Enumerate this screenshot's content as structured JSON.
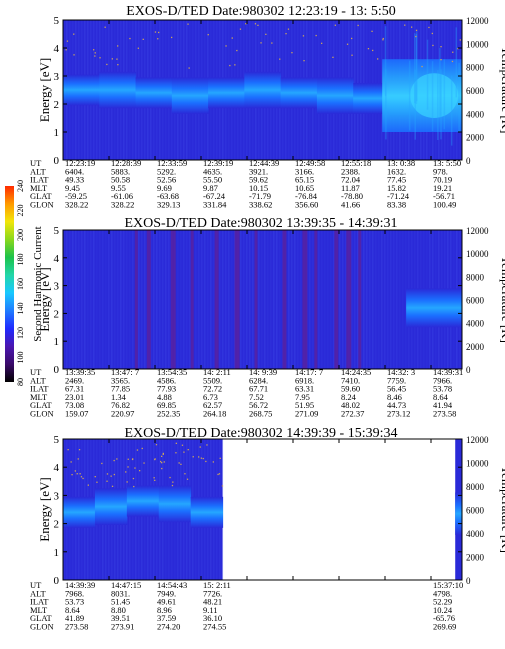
{
  "colors": {
    "bg": "#ffffff",
    "plot_bg": "#2a2ad8",
    "band": "#1b6fff",
    "band_bright": "#25a7ff",
    "band_brightest": "#39d2ff",
    "dark_stripe": "#5a1f9e",
    "speck": "#c8a060"
  },
  "colorbar": {
    "label": "Second Harmonic Current",
    "ticks": [
      "240",
      "220",
      "200",
      "180",
      "160",
      "140",
      "120",
      "100",
      "80"
    ],
    "stops": [
      "#000000",
      "#3a0a6a",
      "#4a16b0",
      "#1f2aff",
      "#1f7cff",
      "#18c8ff",
      "#22d6a8",
      "#1cc24a",
      "#8ad81c",
      "#f2e60a",
      "#ff9a00",
      "#ff2a00"
    ]
  },
  "row_labels": [
    "UT",
    "ALT",
    "ILAT",
    "MLT",
    "GLAT",
    "GLON"
  ],
  "chart_data": [
    {
      "type": "heatmap",
      "title": "EXOS-D/TED   Date:980302   12:23:19 - 13: 5:50",
      "ylabel": "Energy [eV]",
      "y2label": "Temperature [K]",
      "ylim": [
        0,
        5
      ],
      "y_ticks": [
        "0",
        "1",
        "2",
        "3",
        "4",
        "5"
      ],
      "y2lim": [
        0,
        12000
      ],
      "y2_ticks": [
        "0",
        "2000",
        "4000",
        "6000",
        "8000",
        "10000",
        "12000"
      ],
      "data_extent": [
        0,
        1
      ],
      "band_center": [
        2.5,
        2.5,
        2.4,
        2.3,
        2.4,
        2.5,
        2.4,
        2.3,
        2.2,
        2.2,
        2.3
      ],
      "specks": true,
      "stripes": [],
      "bright_patch": {
        "from": 0.8,
        "to": 1.0
      },
      "columns": [
        {
          "UT": "12:23:19",
          "ALT": "6404.",
          "ILAT": "49.33",
          "MLT": "9.45",
          "GLAT": "-59.25",
          "GLON": "328.22"
        },
        {
          "UT": "12:28:39",
          "ALT": "5883.",
          "ILAT": "50.58",
          "MLT": "9.55",
          "GLAT": "-61.06",
          "GLON": "328.22"
        },
        {
          "UT": "12:33:59",
          "ALT": "5292.",
          "ILAT": "52.56",
          "MLT": "9.69",
          "GLAT": "-63.68",
          "GLON": "329.13"
        },
        {
          "UT": "12:39:19",
          "ALT": "4635.",
          "ILAT": "55.50",
          "MLT": "9.87",
          "GLAT": "-67.24",
          "GLON": "331.84"
        },
        {
          "UT": "12:44:39",
          "ALT": "3921.",
          "ILAT": "59.62",
          "MLT": "10.15",
          "GLAT": "-71.79",
          "GLON": "338.62"
        },
        {
          "UT": "12:49:58",
          "ALT": "3166.",
          "ILAT": "65.15",
          "MLT": "10.65",
          "GLAT": "-76.84",
          "GLON": "356.60"
        },
        {
          "UT": "12:55:18",
          "ALT": "2388.",
          "ILAT": "72.04",
          "MLT": "11.87",
          "GLAT": "-78.80",
          "GLON": "41.66"
        },
        {
          "UT": "13: 0:38",
          "ALT": "1632.",
          "ILAT": "77.45",
          "MLT": "15.82",
          "GLAT": "-71.24",
          "GLON": "83.38"
        },
        {
          "UT": "13: 5:50",
          "ALT": "978.",
          "ILAT": "70.19",
          "MLT": "19.21",
          "GLAT": "-56.71",
          "GLON": "100.49"
        }
      ]
    },
    {
      "type": "heatmap",
      "title": "EXOS-D/TED   Date:980302   13:39:35 - 14:39:31",
      "ylabel": "Energy [eV]",
      "y2label": "Temperature [K]",
      "ylim": [
        0,
        5
      ],
      "y_ticks": [
        "0",
        "1",
        "2",
        "3",
        "4",
        "5"
      ],
      "y2lim": [
        0,
        12000
      ],
      "y2_ticks": [
        "0",
        "2000",
        "4000",
        "6000",
        "8000",
        "10000",
        "12000"
      ],
      "data_extent": [
        0,
        1
      ],
      "band_center": [],
      "specks": false,
      "stripes": [
        0.18,
        0.21,
        0.27,
        0.32,
        0.38,
        0.43,
        0.48,
        0.55,
        0.6,
        0.63,
        0.68,
        0.71,
        0.74
      ],
      "late_band": {
        "from": 0.86,
        "to": 1.0,
        "center": 2.2
      },
      "columns": [
        {
          "UT": "13:39:35",
          "ALT": "2469.",
          "ILAT": "67.31",
          "MLT": "23.01",
          "GLAT": "73.08",
          "GLON": "159.07"
        },
        {
          "UT": "13:47: 7",
          "ALT": "3565.",
          "ILAT": "77.85",
          "MLT": "1.34",
          "GLAT": "76.82",
          "GLON": "220.97"
        },
        {
          "UT": "13:54:35",
          "ALT": "4586.",
          "ILAT": "77.93",
          "MLT": "4.88",
          "GLAT": "69.85",
          "GLON": "252.35"
        },
        {
          "UT": "14: 2:11",
          "ALT": "5509.",
          "ILAT": "72.72",
          "MLT": "6.73",
          "GLAT": "62.57",
          "GLON": "264.18"
        },
        {
          "UT": "14: 9:39",
          "ALT": "6284.",
          "ILAT": "67.71",
          "MLT": "7.52",
          "GLAT": "56.72",
          "GLON": "268.75"
        },
        {
          "UT": "14:17: 7",
          "ALT": "6918.",
          "ILAT": "63.31",
          "MLT": "7.95",
          "GLAT": "51.95",
          "GLON": "271.09"
        },
        {
          "UT": "14:24:35",
          "ALT": "7410.",
          "ILAT": "59.60",
          "MLT": "8.24",
          "GLAT": "48.02",
          "GLON": "272.37"
        },
        {
          "UT": "14:32: 3",
          "ALT": "7759.",
          "ILAT": "56.45",
          "MLT": "8.46",
          "GLAT": "44.73",
          "GLON": "273.12"
        },
        {
          "UT": "14:39:31",
          "ALT": "7966.",
          "ILAT": "53.78",
          "MLT": "8.64",
          "GLAT": "41.94",
          "GLON": "273.58"
        }
      ]
    },
    {
      "type": "heatmap",
      "title": "EXOS-D/TED   Date:980302   14:39:39 - 15:39:34",
      "ylabel": "Energy [eV]",
      "y2label": "Temperature [K]",
      "ylim": [
        0,
        5
      ],
      "y_ticks": [
        "0",
        "1",
        "2",
        "3",
        "4",
        "5"
      ],
      "y2lim": [
        0,
        12000
      ],
      "y2_ticks": [
        "0",
        "2000",
        "4000",
        "6000",
        "8000",
        "10000",
        "12000"
      ],
      "data_extent": [
        0,
        0.4
      ],
      "tail_extent": [
        0.983,
        1.0
      ],
      "band_center": [
        2.4,
        2.6,
        2.8,
        2.7,
        2.4
      ],
      "specks": true,
      "stripes": [],
      "columns": [
        {
          "UT": "14:39:39",
          "ALT": "7968.",
          "ILAT": "53.73",
          "MLT": "8.64",
          "GLAT": "41.89",
          "GLON": "273.58"
        },
        {
          "UT": "14:47:15",
          "ALT": "8031.",
          "ILAT": "51.45",
          "MLT": "8.80",
          "GLAT": "39.51",
          "GLON": "273.91"
        },
        {
          "UT": "14:54:43",
          "ALT": "7949.",
          "ILAT": "49.61",
          "MLT": "8.96",
          "GLAT": "37.59",
          "GLON": "274.20"
        },
        {
          "UT": "15: 2:11",
          "ALT": "7726.",
          "ILAT": "48.21",
          "MLT": "9.11",
          "GLAT": "36.10",
          "GLON": "274.55"
        },
        {
          "UT": "",
          "ALT": "",
          "ILAT": "",
          "MLT": "",
          "GLAT": "",
          "GLON": ""
        },
        {
          "UT": "",
          "ALT": "",
          "ILAT": "",
          "MLT": "",
          "GLAT": "",
          "GLON": ""
        },
        {
          "UT": "",
          "ALT": "",
          "ILAT": "",
          "MLT": "",
          "GLAT": "",
          "GLON": ""
        },
        {
          "UT": "",
          "ALT": "",
          "ILAT": "",
          "MLT": "",
          "GLAT": "",
          "GLON": ""
        },
        {
          "UT": "15:37:10",
          "ALT": "4798.",
          "ILAT": "52.29",
          "MLT": "10.24",
          "GLAT": "-65.76",
          "GLON": "269.69"
        }
      ]
    }
  ]
}
